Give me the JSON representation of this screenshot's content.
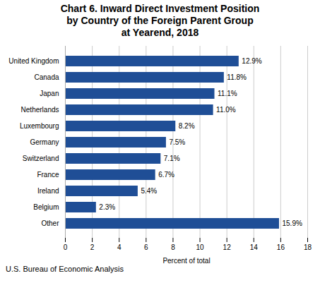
{
  "chart_data": {
    "type": "bar",
    "orientation": "horizontal",
    "title": "Chart 6. Inward Direct Investment Position\nby Country of the Foreign Parent Group\nat Yearend, 2018",
    "categories": [
      "Other",
      "Belgium",
      "Ireland",
      "France",
      "Switzerland",
      "Germany",
      "Luxembourg",
      "Netherlands",
      "Japan",
      "Canada",
      "United Kingdom"
    ],
    "values": [
      15.9,
      2.3,
      5.4,
      6.7,
      7.1,
      7.5,
      8.2,
      11.0,
      11.1,
      11.8,
      12.9
    ],
    "value_labels": [
      "15.9%",
      "2.3%",
      "5.4%",
      "6.7%",
      "7.1%",
      "7.5%",
      "8.2%",
      "11.0%",
      "11.1%",
      "11.8%",
      "12.9%"
    ],
    "data_labels": true,
    "color": "#1F4E96",
    "xlabel": "Percent of total",
    "xlim": [
      0,
      18
    ],
    "xticks": [
      0,
      2,
      4,
      6,
      8,
      10,
      12,
      14,
      16,
      18
    ],
    "grid": true,
    "footnote": "U.S. Bureau of Economic Analysis"
  }
}
